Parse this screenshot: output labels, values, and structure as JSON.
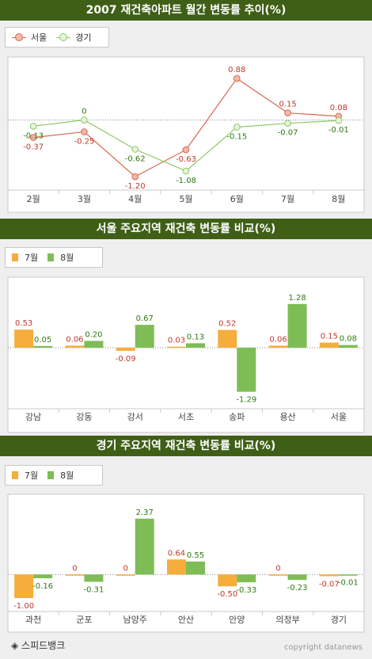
{
  "chart_data": [
    {
      "type": "line",
      "title": "2007 재건축아파트 월간 변동률 추이(%)",
      "categories": [
        "2월",
        "3월",
        "4월",
        "5월",
        "6월",
        "7월",
        "8월"
      ],
      "series": [
        {
          "name": "서울",
          "values": [
            -0.37,
            -0.25,
            -1.2,
            -0.63,
            0.88,
            0.15,
            0.08
          ],
          "labels": [
            "-0.37",
            "-0.25",
            "-1.20",
            "-0.63",
            "0.88",
            "0.15",
            "0.08"
          ],
          "color": "#d9674e"
        },
        {
          "name": "경기",
          "values": [
            -0.13,
            0,
            -0.62,
            -1.08,
            -0.15,
            -0.07,
            -0.01
          ],
          "labels": [
            "-0.13",
            "0",
            "-0.62",
            "-1.08",
            "-0.15",
            "-0.07",
            "-0.01"
          ],
          "color": "#8cc965"
        }
      ],
      "ylim": [
        -1.4,
        1.2
      ],
      "grid": false,
      "legend": "top-left"
    },
    {
      "type": "bar",
      "title": "서울 주요지역 재건축 변동률 비교(%)",
      "categories": [
        "강남",
        "강동",
        "강서",
        "서초",
        "송파",
        "용산",
        "서울"
      ],
      "series": [
        {
          "name": "7월",
          "values": [
            0.53,
            0.06,
            -0.09,
            0.03,
            0.52,
            0.06,
            0.15
          ],
          "labels": [
            "0.53",
            "0.06",
            "-0.09",
            "0.03",
            "0.52",
            "0.06",
            "0.15"
          ],
          "color": "#f5ad3c"
        },
        {
          "name": "8월",
          "values": [
            0.05,
            0.2,
            0.67,
            0.13,
            -1.29,
            1.28,
            0.08
          ],
          "labels": [
            "0.05",
            "0.20",
            "0.67",
            "0.13",
            "-1.29",
            "1.28",
            "0.08"
          ],
          "color": "#7ebd55"
        }
      ],
      "ylim": [
        -1.6,
        1.6
      ],
      "legend": "top-left"
    },
    {
      "type": "bar",
      "title": "경기 주요지역 재건축 변동률 비교(%)",
      "categories": [
        "과천",
        "군포",
        "남양주",
        "안산",
        "안양",
        "의정부",
        "경기"
      ],
      "series": [
        {
          "name": "7월",
          "values": [
            -1.0,
            0,
            0,
            0.64,
            -0.5,
            0,
            -0.07
          ],
          "labels": [
            "-1.00",
            "0",
            "0",
            "0.64",
            "-0.50",
            "0",
            "-0.07"
          ],
          "color": "#f5ad3c"
        },
        {
          "name": "8월",
          "values": [
            -0.16,
            -0.31,
            2.37,
            0.55,
            -0.33,
            -0.23,
            -0.01
          ],
          "labels": [
            "-0.16",
            "-0.31",
            "2.37",
            "0.55",
            "-0.33",
            "-0.23",
            "-0.01"
          ],
          "color": "#7ebd55"
        }
      ],
      "ylim": [
        -1.3,
        2.8
      ],
      "legend": "top-left"
    }
  ],
  "footer": {
    "source": "◈ 스피드뱅크",
    "copyright": "copyright datanews"
  }
}
